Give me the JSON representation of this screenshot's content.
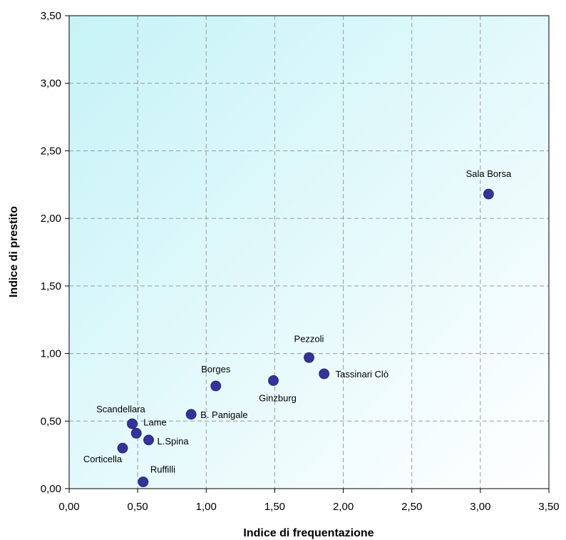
{
  "chart_data": {
    "type": "scatter",
    "xlabel": "Indice di frequentazione",
    "ylabel": "Indice di prestito",
    "xlim": [
      0,
      3.5
    ],
    "ylim": [
      0,
      3.5
    ],
    "x_ticks": [
      "0,00",
      "0,50",
      "1,00",
      "1,50",
      "2,00",
      "2,50",
      "3,00",
      "3,50"
    ],
    "y_ticks": [
      "0,00",
      "0,50",
      "1,00",
      "1,50",
      "2,00",
      "2,50",
      "3,00",
      "3,50"
    ],
    "grid": true,
    "marker_color": "#333399",
    "plot_background": [
      "#c6f3f7",
      "#ffffff"
    ],
    "points": [
      {
        "label": "Sala Borsa",
        "x": 3.06,
        "y": 2.18
      },
      {
        "label": "Pezzoli",
        "x": 1.75,
        "y": 0.97
      },
      {
        "label": "Tassinari Clò",
        "x": 1.86,
        "y": 0.85
      },
      {
        "label": "Ginzburg",
        "x": 1.49,
        "y": 0.8
      },
      {
        "label": "Borges",
        "x": 1.07,
        "y": 0.76
      },
      {
        "label": "B. Panigale",
        "x": 0.89,
        "y": 0.55
      },
      {
        "label": "Scandellara",
        "x": 0.46,
        "y": 0.48
      },
      {
        "label": "Lame",
        "x": 0.49,
        "y": 0.41
      },
      {
        "label": "L.Spina",
        "x": 0.58,
        "y": 0.36
      },
      {
        "label": "Corticella",
        "x": 0.39,
        "y": 0.3
      },
      {
        "label": "Ruffilli",
        "x": 0.54,
        "y": 0.05
      }
    ]
  }
}
